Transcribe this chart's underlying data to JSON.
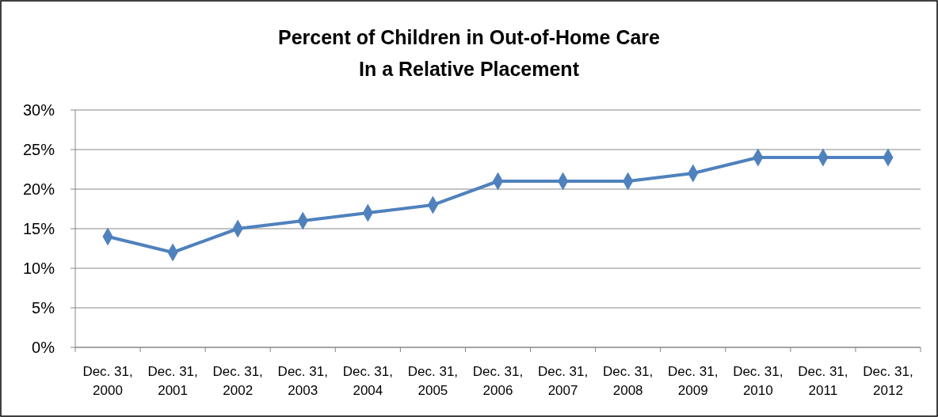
{
  "chart_data": {
    "type": "line",
    "title": "Percent of Children in Out-of-Home Care\nIn a Relative Placement",
    "categories": [
      "Dec. 31, 2000",
      "Dec. 31, 2001",
      "Dec. 31, 2002",
      "Dec. 31, 2003",
      "Dec. 31, 2004",
      "Dec. 31, 2005",
      "Dec. 31, 2006",
      "Dec. 31, 2007",
      "Dec. 31, 2008",
      "Dec. 31, 2009",
      "Dec. 31, 2010",
      "Dec. 31, 2011",
      "Dec. 31, 2012"
    ],
    "series": [
      {
        "color": "#4f81bd",
        "values": [
          14,
          12,
          15,
          16,
          17,
          18,
          21,
          21,
          21,
          22,
          24,
          24,
          24
        ]
      }
    ],
    "ylim": [
      0,
      30
    ],
    "yticks": [
      {
        "value": 0,
        "label": "0%"
      },
      {
        "value": 5,
        "label": "5%"
      },
      {
        "value": 10,
        "label": "10%"
      },
      {
        "value": 15,
        "label": "15%"
      },
      {
        "value": 20,
        "label": "20%"
      },
      {
        "value": 25,
        "label": "25%"
      },
      {
        "value": 30,
        "label": "30%"
      }
    ],
    "grid": "y",
    "marker": "diamond",
    "line_style": "solid"
  }
}
